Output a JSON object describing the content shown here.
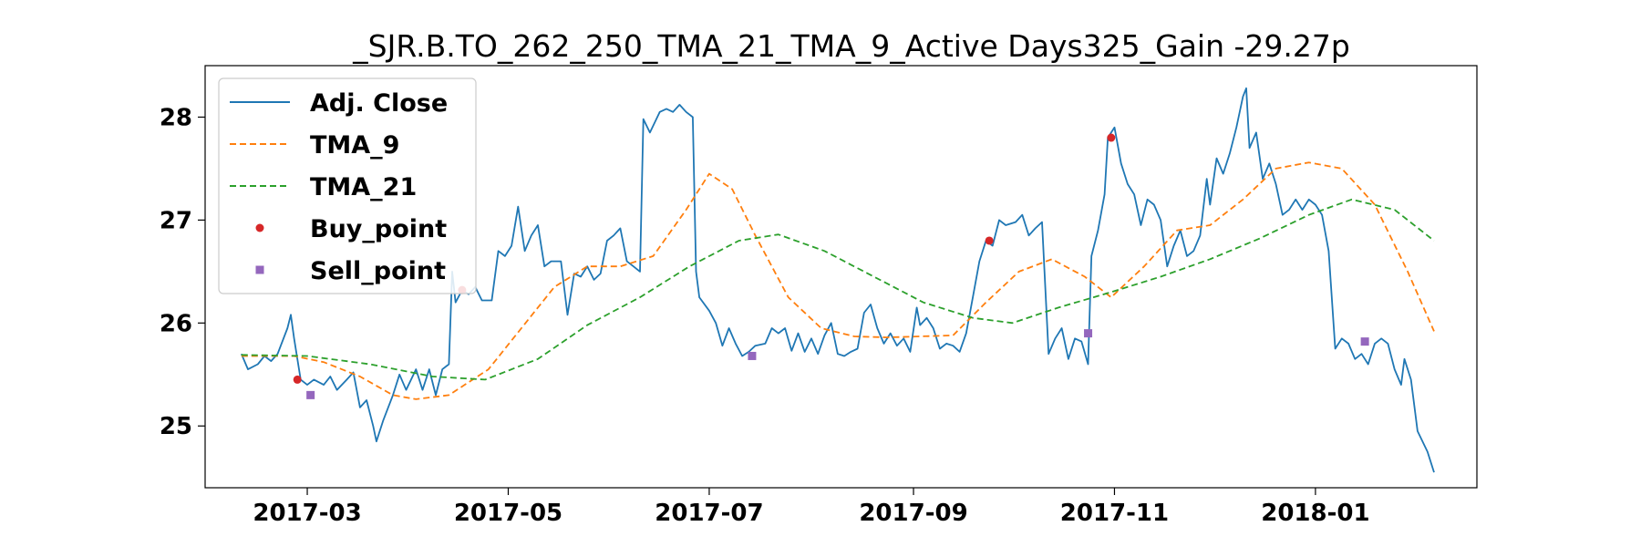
{
  "chart_data": {
    "type": "line",
    "title": "_SJR.B.TO_262_250_TMA_21_TMA_9_Active Days325_Gain -29.27p",
    "xlabel": "",
    "ylabel": "",
    "x_ticks": [
      "2017-03",
      "2017-05",
      "2017-07",
      "2017-09",
      "2017-11",
      "2018-01"
    ],
    "y_ticks": [
      25,
      26,
      27,
      28
    ],
    "ylim": [
      24.4,
      28.5
    ],
    "xlim": [
      "2017-01-29",
      "2018-02-19"
    ],
    "grid": false,
    "legend_position": "top-left",
    "legend": [
      {
        "label": "Adj. Close",
        "style": "solid-line",
        "color": "#1f77b4"
      },
      {
        "label": "TMA_9",
        "style": "dashed-line",
        "color": "#ff7f0e"
      },
      {
        "label": "TMA_21",
        "style": "dashed-line",
        "color": "#2ca02c"
      },
      {
        "label": "Buy_point",
        "style": "circle",
        "color": "#d62728"
      },
      {
        "label": "Sell_point",
        "style": "square",
        "color": "#9467bd"
      }
    ],
    "series": [
      {
        "name": "Adj. Close",
        "color": "#1f77b4",
        "points": [
          [
            "2017-02-09",
            25.7
          ],
          [
            "2017-02-11",
            25.55
          ],
          [
            "2017-02-14",
            25.6
          ],
          [
            "2017-02-16",
            25.68
          ],
          [
            "2017-02-18",
            25.63
          ],
          [
            "2017-02-20",
            25.7
          ],
          [
            "2017-02-23",
            25.95
          ],
          [
            "2017-02-24",
            26.08
          ],
          [
            "2017-02-25",
            25.85
          ],
          [
            "2017-02-27",
            25.45
          ],
          [
            "2017-03-01",
            25.4
          ],
          [
            "2017-03-03",
            25.45
          ],
          [
            "2017-03-06",
            25.4
          ],
          [
            "2017-03-08",
            25.48
          ],
          [
            "2017-03-10",
            25.35
          ],
          [
            "2017-03-13",
            25.45
          ],
          [
            "2017-03-15",
            25.52
          ],
          [
            "2017-03-17",
            25.18
          ],
          [
            "2017-03-19",
            25.25
          ],
          [
            "2017-03-21",
            25.0
          ],
          [
            "2017-03-22",
            24.85
          ],
          [
            "2017-03-24",
            25.05
          ],
          [
            "2017-03-27",
            25.3
          ],
          [
            "2017-03-29",
            25.5
          ],
          [
            "2017-03-31",
            25.35
          ],
          [
            "2017-04-03",
            25.55
          ],
          [
            "2017-04-05",
            25.35
          ],
          [
            "2017-04-07",
            25.55
          ],
          [
            "2017-04-09",
            25.3
          ],
          [
            "2017-04-11",
            25.55
          ],
          [
            "2017-04-13",
            25.6
          ],
          [
            "2017-04-14",
            26.5
          ],
          [
            "2017-04-15",
            26.2
          ],
          [
            "2017-04-17",
            26.32
          ],
          [
            "2017-04-19",
            26.28
          ],
          [
            "2017-04-21",
            26.35
          ],
          [
            "2017-04-23",
            26.22
          ],
          [
            "2017-04-26",
            26.22
          ],
          [
            "2017-04-28",
            26.7
          ],
          [
            "2017-04-30",
            26.65
          ],
          [
            "2017-05-02",
            26.75
          ],
          [
            "2017-05-04",
            27.13
          ],
          [
            "2017-05-06",
            26.7
          ],
          [
            "2017-05-08",
            26.85
          ],
          [
            "2017-05-10",
            26.95
          ],
          [
            "2017-05-12",
            26.55
          ],
          [
            "2017-05-14",
            26.6
          ],
          [
            "2017-05-17",
            26.6
          ],
          [
            "2017-05-19",
            26.08
          ],
          [
            "2017-05-21",
            26.48
          ],
          [
            "2017-05-23",
            26.45
          ],
          [
            "2017-05-25",
            26.55
          ],
          [
            "2017-05-27",
            26.42
          ],
          [
            "2017-05-29",
            26.48
          ],
          [
            "2017-05-31",
            26.8
          ],
          [
            "2017-06-02",
            26.85
          ],
          [
            "2017-06-04",
            26.92
          ],
          [
            "2017-06-06",
            26.6
          ],
          [
            "2017-06-08",
            26.55
          ],
          [
            "2017-06-10",
            26.5
          ],
          [
            "2017-06-11",
            27.98
          ],
          [
            "2017-06-13",
            27.85
          ],
          [
            "2017-06-16",
            28.05
          ],
          [
            "2017-06-18",
            28.08
          ],
          [
            "2017-06-20",
            28.05
          ],
          [
            "2017-06-22",
            28.12
          ],
          [
            "2017-06-24",
            28.05
          ],
          [
            "2017-06-26",
            28.0
          ],
          [
            "2017-06-27",
            26.5
          ],
          [
            "2017-06-28",
            26.25
          ],
          [
            "2017-07-01",
            26.12
          ],
          [
            "2017-07-03",
            26.0
          ],
          [
            "2017-07-05",
            25.78
          ],
          [
            "2017-07-07",
            25.95
          ],
          [
            "2017-07-09",
            25.8
          ],
          [
            "2017-07-11",
            25.68
          ],
          [
            "2017-07-13",
            25.72
          ],
          [
            "2017-07-15",
            25.78
          ],
          [
            "2017-07-18",
            25.8
          ],
          [
            "2017-07-20",
            25.95
          ],
          [
            "2017-07-22",
            25.9
          ],
          [
            "2017-07-24",
            25.95
          ],
          [
            "2017-07-26",
            25.73
          ],
          [
            "2017-07-28",
            25.9
          ],
          [
            "2017-07-30",
            25.72
          ],
          [
            "2017-08-01",
            25.85
          ],
          [
            "2017-08-03",
            25.7
          ],
          [
            "2017-08-05",
            25.88
          ],
          [
            "2017-08-07",
            26.0
          ],
          [
            "2017-08-09",
            25.7
          ],
          [
            "2017-08-11",
            25.68
          ],
          [
            "2017-08-13",
            25.72
          ],
          [
            "2017-08-15",
            25.75
          ],
          [
            "2017-08-17",
            26.1
          ],
          [
            "2017-08-19",
            26.18
          ],
          [
            "2017-08-21",
            25.95
          ],
          [
            "2017-08-23",
            25.8
          ],
          [
            "2017-08-25",
            25.9
          ],
          [
            "2017-08-27",
            25.78
          ],
          [
            "2017-08-29",
            25.85
          ],
          [
            "2017-08-31",
            25.72
          ],
          [
            "2017-09-02",
            26.15
          ],
          [
            "2017-09-03",
            25.98
          ],
          [
            "2017-09-05",
            26.05
          ],
          [
            "2017-09-07",
            25.95
          ],
          [
            "2017-09-09",
            25.75
          ],
          [
            "2017-09-11",
            25.8
          ],
          [
            "2017-09-13",
            25.78
          ],
          [
            "2017-09-15",
            25.72
          ],
          [
            "2017-09-17",
            25.9
          ],
          [
            "2017-09-19",
            26.25
          ],
          [
            "2017-09-21",
            26.6
          ],
          [
            "2017-09-23",
            26.8
          ],
          [
            "2017-09-25",
            26.75
          ],
          [
            "2017-09-27",
            27.0
          ],
          [
            "2017-09-29",
            26.95
          ],
          [
            "2017-10-02",
            26.98
          ],
          [
            "2017-10-04",
            27.05
          ],
          [
            "2017-10-06",
            26.85
          ],
          [
            "2017-10-08",
            26.92
          ],
          [
            "2017-10-10",
            26.98
          ],
          [
            "2017-10-12",
            25.7
          ],
          [
            "2017-10-14",
            25.85
          ],
          [
            "2017-10-16",
            25.95
          ],
          [
            "2017-10-18",
            25.65
          ],
          [
            "2017-10-20",
            25.85
          ],
          [
            "2017-10-22",
            25.82
          ],
          [
            "2017-10-24",
            25.6
          ],
          [
            "2017-10-25",
            26.65
          ],
          [
            "2017-10-27",
            26.9
          ],
          [
            "2017-10-29",
            27.25
          ],
          [
            "2017-10-30",
            27.8
          ],
          [
            "2017-11-01",
            27.9
          ],
          [
            "2017-11-03",
            27.55
          ],
          [
            "2017-11-05",
            27.35
          ],
          [
            "2017-11-07",
            27.25
          ],
          [
            "2017-11-09",
            26.95
          ],
          [
            "2017-11-11",
            27.2
          ],
          [
            "2017-11-13",
            27.15
          ],
          [
            "2017-11-15",
            27.0
          ],
          [
            "2017-11-17",
            26.55
          ],
          [
            "2017-11-19",
            26.75
          ],
          [
            "2017-11-21",
            26.9
          ],
          [
            "2017-11-23",
            26.65
          ],
          [
            "2017-11-25",
            26.7
          ],
          [
            "2017-11-27",
            26.85
          ],
          [
            "2017-11-29",
            27.4
          ],
          [
            "2017-11-30",
            27.15
          ],
          [
            "2017-12-02",
            27.6
          ],
          [
            "2017-12-04",
            27.45
          ],
          [
            "2017-12-06",
            27.65
          ],
          [
            "2017-12-08",
            27.9
          ],
          [
            "2017-12-10",
            28.2
          ],
          [
            "2017-12-11",
            28.28
          ],
          [
            "2017-12-12",
            27.7
          ],
          [
            "2017-12-14",
            27.85
          ],
          [
            "2017-12-16",
            27.4
          ],
          [
            "2017-12-18",
            27.55
          ],
          [
            "2017-12-20",
            27.35
          ],
          [
            "2017-12-22",
            27.05
          ],
          [
            "2017-12-24",
            27.1
          ],
          [
            "2017-12-26",
            27.2
          ],
          [
            "2017-12-28",
            27.1
          ],
          [
            "2017-12-30",
            27.2
          ],
          [
            "2018-01-01",
            27.15
          ],
          [
            "2018-01-03",
            27.05
          ],
          [
            "2018-01-05",
            26.7
          ],
          [
            "2018-01-07",
            25.75
          ],
          [
            "2018-01-09",
            25.85
          ],
          [
            "2018-01-11",
            25.8
          ],
          [
            "2018-01-13",
            25.65
          ],
          [
            "2018-01-15",
            25.7
          ],
          [
            "2018-01-17",
            25.6
          ],
          [
            "2018-01-19",
            25.8
          ],
          [
            "2018-01-21",
            25.85
          ],
          [
            "2018-01-23",
            25.8
          ],
          [
            "2018-01-25",
            25.55
          ],
          [
            "2018-01-27",
            25.4
          ],
          [
            "2018-01-28",
            25.65
          ],
          [
            "2018-01-30",
            25.45
          ],
          [
            "2018-02-01",
            24.95
          ],
          [
            "2018-02-04",
            24.75
          ],
          [
            "2018-02-06",
            24.55
          ]
        ]
      },
      {
        "name": "TMA_9",
        "color": "#ff7f0e",
        "points": [
          [
            "2017-02-09",
            25.68
          ],
          [
            "2017-02-25",
            25.68
          ],
          [
            "2017-03-06",
            25.62
          ],
          [
            "2017-03-17",
            25.48
          ],
          [
            "2017-03-27",
            25.3
          ],
          [
            "2017-04-03",
            25.26
          ],
          [
            "2017-04-13",
            25.3
          ],
          [
            "2017-04-25",
            25.55
          ],
          [
            "2017-05-05",
            25.95
          ],
          [
            "2017-05-15",
            26.35
          ],
          [
            "2017-05-25",
            26.55
          ],
          [
            "2017-06-04",
            26.55
          ],
          [
            "2017-06-14",
            26.65
          ],
          [
            "2017-06-24",
            27.1
          ],
          [
            "2017-07-01",
            27.45
          ],
          [
            "2017-07-08",
            27.3
          ],
          [
            "2017-07-15",
            26.85
          ],
          [
            "2017-07-25",
            26.25
          ],
          [
            "2017-08-04",
            25.95
          ],
          [
            "2017-08-14",
            25.87
          ],
          [
            "2017-08-24",
            25.86
          ],
          [
            "2017-09-03",
            25.87
          ],
          [
            "2017-09-13",
            25.88
          ],
          [
            "2017-09-23",
            26.2
          ],
          [
            "2017-10-03",
            26.5
          ],
          [
            "2017-10-13",
            26.62
          ],
          [
            "2017-10-23",
            26.45
          ],
          [
            "2017-10-31",
            26.25
          ],
          [
            "2017-11-10",
            26.55
          ],
          [
            "2017-11-20",
            26.9
          ],
          [
            "2017-11-30",
            26.95
          ],
          [
            "2017-12-10",
            27.2
          ],
          [
            "2017-12-20",
            27.5
          ],
          [
            "2017-12-30",
            27.56
          ],
          [
            "2018-01-09",
            27.5
          ],
          [
            "2018-01-19",
            27.15
          ],
          [
            "2018-01-29",
            26.5
          ],
          [
            "2018-02-06",
            25.92
          ]
        ]
      },
      {
        "name": "TMA_21",
        "color": "#2ca02c",
        "points": [
          [
            "2017-02-09",
            25.69
          ],
          [
            "2017-03-01",
            25.68
          ],
          [
            "2017-03-20",
            25.6
          ],
          [
            "2017-04-08",
            25.48
          ],
          [
            "2017-04-24",
            25.45
          ],
          [
            "2017-05-10",
            25.65
          ],
          [
            "2017-05-25",
            25.98
          ],
          [
            "2017-06-10",
            26.25
          ],
          [
            "2017-06-25",
            26.55
          ],
          [
            "2017-07-10",
            26.8
          ],
          [
            "2017-07-22",
            26.86
          ],
          [
            "2017-08-05",
            26.7
          ],
          [
            "2017-08-20",
            26.45
          ],
          [
            "2017-09-04",
            26.2
          ],
          [
            "2017-09-19",
            26.05
          ],
          [
            "2017-10-01",
            26.0
          ],
          [
            "2017-10-15",
            26.15
          ],
          [
            "2017-10-31",
            26.3
          ],
          [
            "2017-11-15",
            26.45
          ],
          [
            "2017-11-30",
            26.62
          ],
          [
            "2017-12-15",
            26.82
          ],
          [
            "2017-12-30",
            27.05
          ],
          [
            "2018-01-12",
            27.2
          ],
          [
            "2018-01-25",
            27.1
          ],
          [
            "2018-02-06",
            26.8
          ]
        ]
      },
      {
        "name": "Buy_point",
        "color": "#d62728",
        "marker": "circle",
        "points": [
          [
            "2017-02-26",
            25.45
          ],
          [
            "2017-04-17",
            26.32
          ],
          [
            "2017-09-24",
            26.8
          ],
          [
            "2017-10-31",
            27.8
          ]
        ]
      },
      {
        "name": "Sell_point",
        "color": "#9467bd",
        "marker": "square",
        "points": [
          [
            "2017-03-02",
            25.3
          ],
          [
            "2017-07-14",
            25.68
          ],
          [
            "2017-10-24",
            25.9
          ],
          [
            "2018-01-16",
            25.82
          ]
        ]
      }
    ]
  }
}
